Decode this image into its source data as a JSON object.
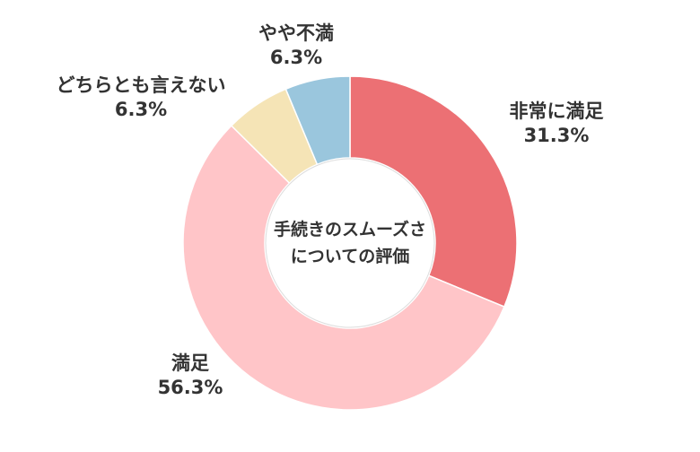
{
  "chart_data": {
    "type": "pie",
    "donut": true,
    "center_label": [
      "手続きのスムーズさ",
      "についての評価"
    ],
    "categories": [
      "非常に満足",
      "満足",
      "どちらとも言えない",
      "やや不満"
    ],
    "values": [
      31.3,
      56.3,
      6.3,
      6.3
    ],
    "value_labels": [
      "31.3%",
      "56.3%",
      "6.3%",
      "6.3%"
    ],
    "colors": [
      "#ec7074",
      "#ffc5c8",
      "#f5e4b6",
      "#9ac6dd"
    ],
    "legend": "none"
  }
}
